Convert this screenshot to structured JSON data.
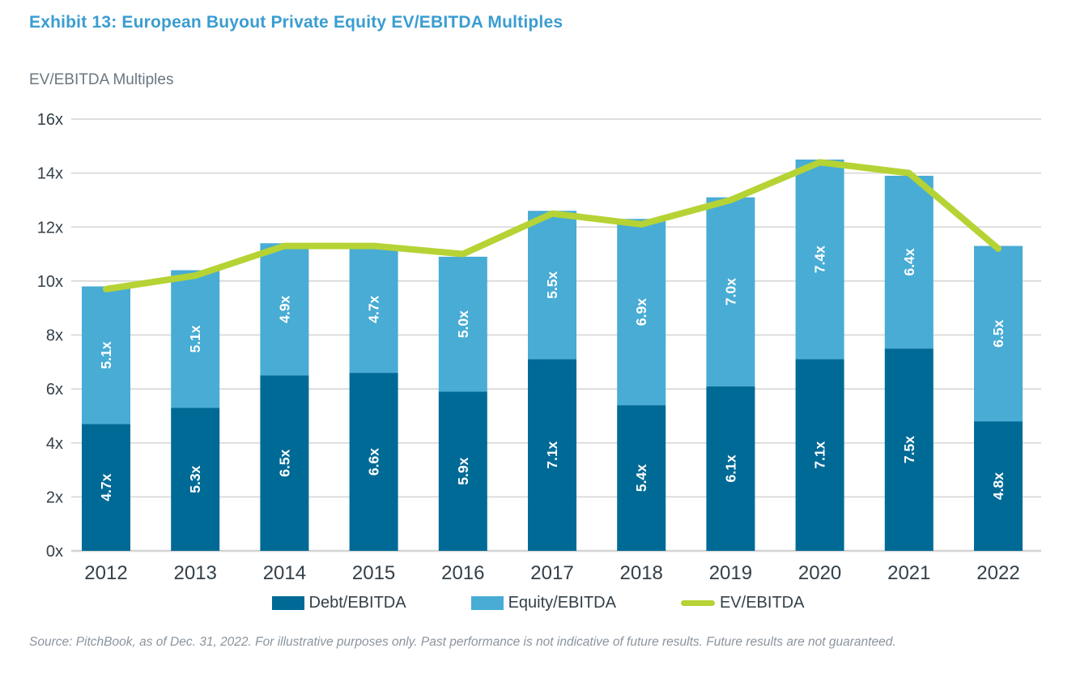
{
  "page": {
    "title": "Exhibit 13: European Buyout Private Equity EV/EBITDA Multiples",
    "subtitle": "EV/EBITDA Multiples",
    "source": "Source: PitchBook, as of Dec. 31, 2022. For illustrative purposes only. Past performance is not indicative of future results. Future results are not guaranteed."
  },
  "colors": {
    "title_text": "#3a9dd1",
    "subtitle_text": "#6b7780",
    "debt": "#006a96",
    "equity": "#48acd5",
    "line": "#b5d334",
    "axis_text": "#333f48",
    "gridline": "#d9d9d9",
    "baseline": "#d4d4d4",
    "bar_label": "#ffffff",
    "source_text": "#8a949e"
  },
  "chart_data": {
    "type": "bar",
    "subtype": "stacked-bar-with-line",
    "title": "Exhibit 13: European Buyout Private Equity EV/EBITDA Multiples",
    "ylabel": "EV/EBITDA Multiples",
    "xlabel": "",
    "categories": [
      "2012",
      "2013",
      "2014",
      "2015",
      "2016",
      "2017",
      "2018",
      "2019",
      "2020",
      "2021",
      "2022"
    ],
    "series": [
      {
        "name": "Debt/EBITDA",
        "type": "bar",
        "color_key": "debt",
        "values": [
          4.7,
          5.3,
          6.5,
          6.6,
          5.9,
          7.1,
          5.4,
          6.1,
          7.1,
          7.5,
          4.8
        ]
      },
      {
        "name": "Equity/EBITDA",
        "type": "bar",
        "color_key": "equity",
        "values": [
          5.1,
          5.1,
          4.9,
          4.7,
          5.0,
          5.5,
          6.9,
          7.0,
          7.4,
          6.4,
          6.5
        ]
      },
      {
        "name": "EV/EBITDA",
        "type": "line",
        "color_key": "line",
        "values": [
          9.7,
          10.2,
          11.3,
          11.3,
          11.0,
          12.5,
          12.1,
          13.0,
          14.4,
          14.0,
          11.2
        ]
      }
    ],
    "bar_label_suffix": "x",
    "ylim": [
      0,
      16
    ],
    "ytick_step": 2,
    "ytick_suffix": "x",
    "grid": true,
    "legend_position": "bottom"
  }
}
